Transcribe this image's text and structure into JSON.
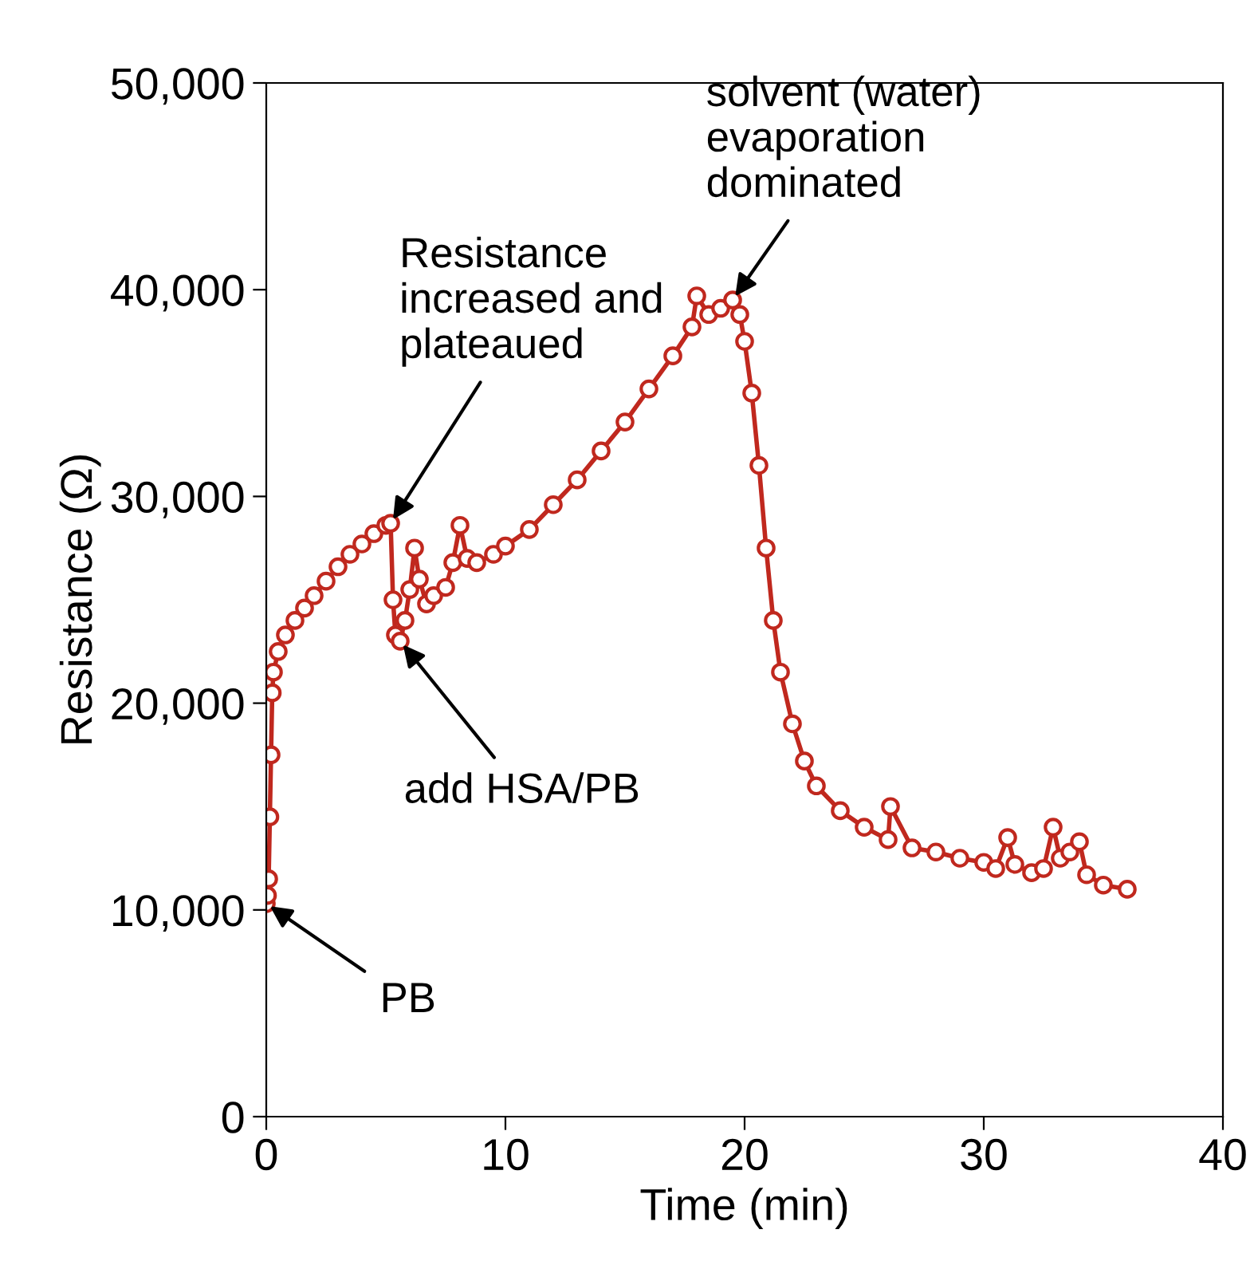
{
  "chart_data": {
    "type": "line",
    "xlabel": "Time (min)",
    "ylabel": "Resistance (Ω)",
    "marker": "circle",
    "line_style": "solid",
    "grid": false,
    "legend": false,
    "xlim": [
      0,
      40
    ],
    "xticks": [
      0,
      10,
      20,
      30,
      40
    ],
    "ylim": [
      0,
      50000
    ],
    "yticks": [
      {
        "value": 0,
        "label": "0"
      },
      {
        "value": 10000,
        "label": "10,000"
      },
      {
        "value": 20000,
        "label": "20,000"
      },
      {
        "value": 30000,
        "label": "30,000"
      },
      {
        "value": 40000,
        "label": "40,000"
      },
      {
        "value": 50000,
        "label": "50,000"
      }
    ],
    "series": [
      {
        "color": "#c0281e",
        "x": [
          0,
          0.05,
          0.1,
          0.15,
          0.2,
          0.25,
          0.3,
          0.5,
          0.8,
          1.2,
          1.6,
          2,
          2.5,
          3,
          3.5,
          4,
          4.5,
          5,
          5.2,
          5.3,
          5.4,
          5.6,
          5.8,
          6,
          6.2,
          6.4,
          6.7,
          7,
          7.5,
          7.8,
          8.1,
          8.4,
          8.8,
          9.5,
          10,
          11,
          12,
          13,
          14,
          15,
          16,
          17,
          17.8,
          18,
          18.5,
          19,
          19.5,
          19.8,
          20,
          20.3,
          20.6,
          20.9,
          21.2,
          21.5,
          22,
          22.5,
          23,
          24,
          25,
          26,
          26.1,
          27,
          28,
          29,
          30,
          30.5,
          31,
          31.3,
          32,
          32.5,
          32.9,
          33.2,
          33.6,
          34,
          34.3,
          35,
          36
        ],
        "values": [
          10300,
          10700,
          11500,
          14500,
          17500,
          20500,
          21500,
          22500,
          23300,
          24000,
          24600,
          25200,
          25900,
          26600,
          27200,
          27700,
          28200,
          28600,
          28700,
          25000,
          23300,
          23000,
          24000,
          25500,
          27500,
          26000,
          24800,
          25200,
          25600,
          26800,
          28600,
          27000,
          26800,
          27200,
          27600,
          28400,
          29600,
          30800,
          32200,
          33600,
          35200,
          36800,
          38200,
          39700,
          38800,
          39100,
          39500,
          38800,
          37500,
          35000,
          31500,
          27500,
          24000,
          21500,
          19000,
          17200,
          16000,
          14800,
          14000,
          13400,
          15000,
          13000,
          12800,
          12500,
          12300,
          12000,
          13500,
          12200,
          11800,
          12000,
          14000,
          12500,
          12800,
          13300,
          11700,
          11200,
          11000
        ]
      }
    ],
    "annotations": [
      {
        "text": "PB",
        "x": 0,
        "y": 10300
      },
      {
        "text": "add HSA/PB",
        "x": 5.6,
        "y": 23000
      },
      {
        "text": "Resistance\nincreased and\nplateaued",
        "x": 5.2,
        "y": 28700
      },
      {
        "text": "solvent (water)\nevaporation\ndominated",
        "x": 19.5,
        "y": 39500
      }
    ]
  }
}
